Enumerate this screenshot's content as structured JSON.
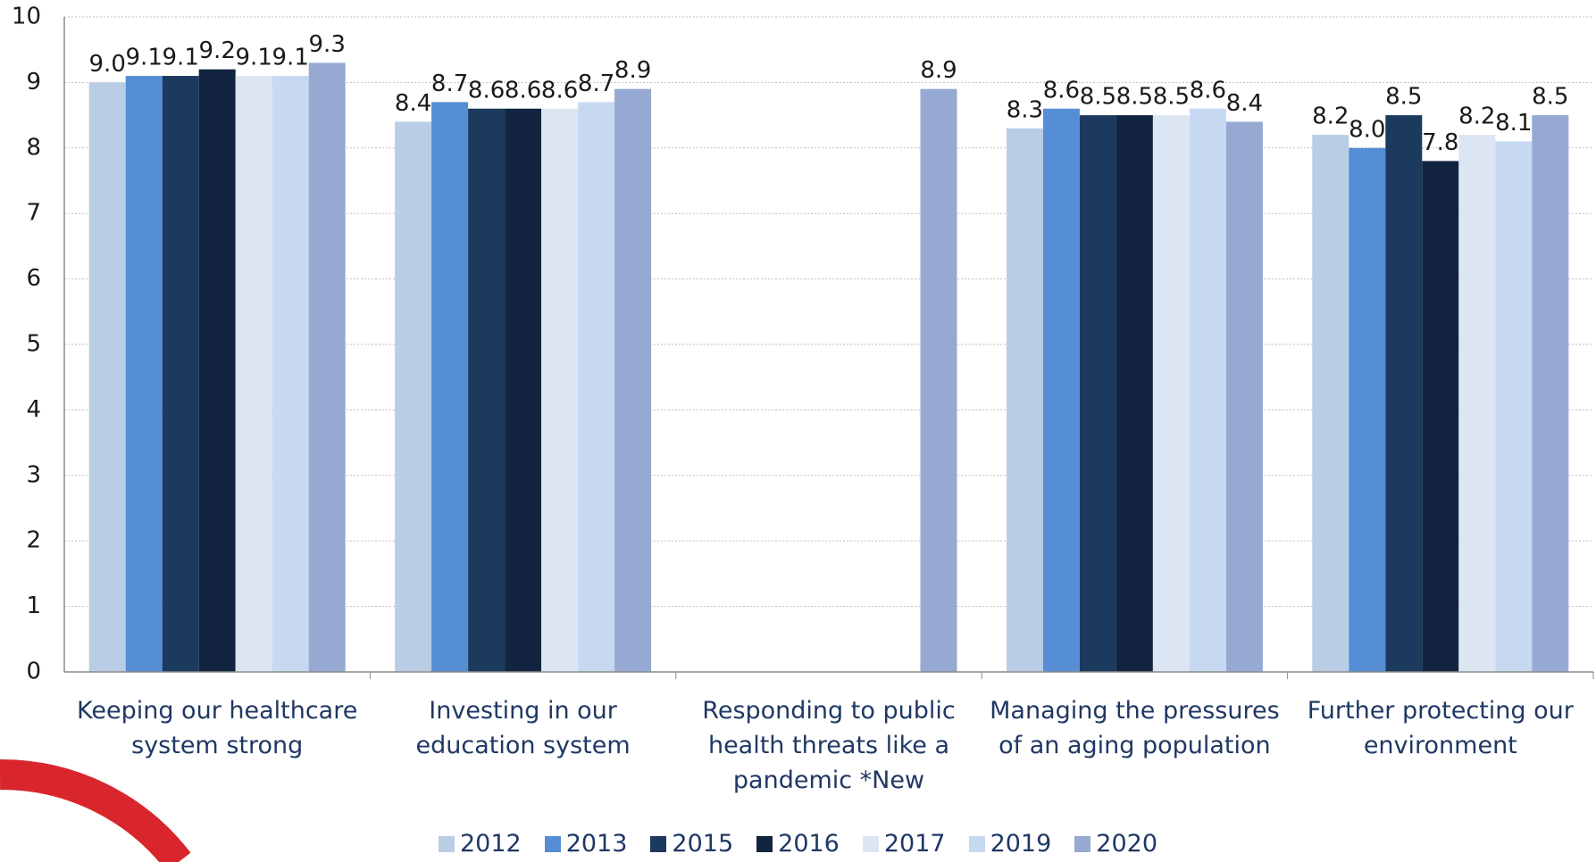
{
  "chart_data": {
    "type": "bar",
    "categories": [
      "Keeping our healthcare system strong",
      "Investing in our education system",
      "Responding to public health threats like a pandemic *New",
      "Managing the pressures of an aging population",
      "Further protecting our environment"
    ],
    "series": [
      {
        "name": "2012",
        "color": "#b9cde5",
        "values": [
          9.0,
          8.4,
          null,
          8.3,
          8.2
        ],
        "value_labels": [
          "9.0",
          "8.4",
          null,
          "8.3",
          "8.2"
        ]
      },
      {
        "name": "2013",
        "color": "#558ed5",
        "values": [
          9.1,
          8.7,
          null,
          8.6,
          8.0
        ],
        "value_labels": [
          "9.1",
          "8.7",
          null,
          "8.6",
          "8.0"
        ]
      },
      {
        "name": "2015",
        "color": "#1b3a5e",
        "values": [
          9.1,
          8.6,
          null,
          8.5,
          8.5
        ],
        "value_labels": [
          "9.1",
          "8.6",
          null,
          "8.5",
          "8.5"
        ]
      },
      {
        "name": "2016",
        "color": "#12243f",
        "values": [
          9.2,
          8.6,
          null,
          8.5,
          7.8
        ],
        "value_labels": [
          "9.2",
          "8.6",
          null,
          "8.5",
          "7.8"
        ]
      },
      {
        "name": "2017",
        "color": "#dce6f2",
        "values": [
          9.1,
          8.6,
          null,
          8.5,
          8.2
        ],
        "value_labels": [
          "9.1",
          "8.6",
          null,
          "8.5",
          "8.2"
        ]
      },
      {
        "name": "2019",
        "color": "#c6d9f1",
        "values": [
          9.1,
          8.7,
          null,
          8.6,
          8.1
        ],
        "value_labels": [
          "9.1",
          "8.7",
          null,
          "8.6",
          "8.1"
        ]
      },
      {
        "name": "2020",
        "color": "#95a9d3",
        "values": [
          9.3,
          8.9,
          8.9,
          8.4,
          8.5
        ],
        "value_labels": [
          "9.3",
          "8.9",
          "8.9",
          "8.4",
          "8.5"
        ]
      }
    ],
    "ylim": [
      0,
      10
    ],
    "yticks": [
      0,
      1,
      2,
      3,
      4,
      5,
      6,
      7,
      8,
      9,
      10
    ],
    "grid": true,
    "legend": "bottom"
  }
}
